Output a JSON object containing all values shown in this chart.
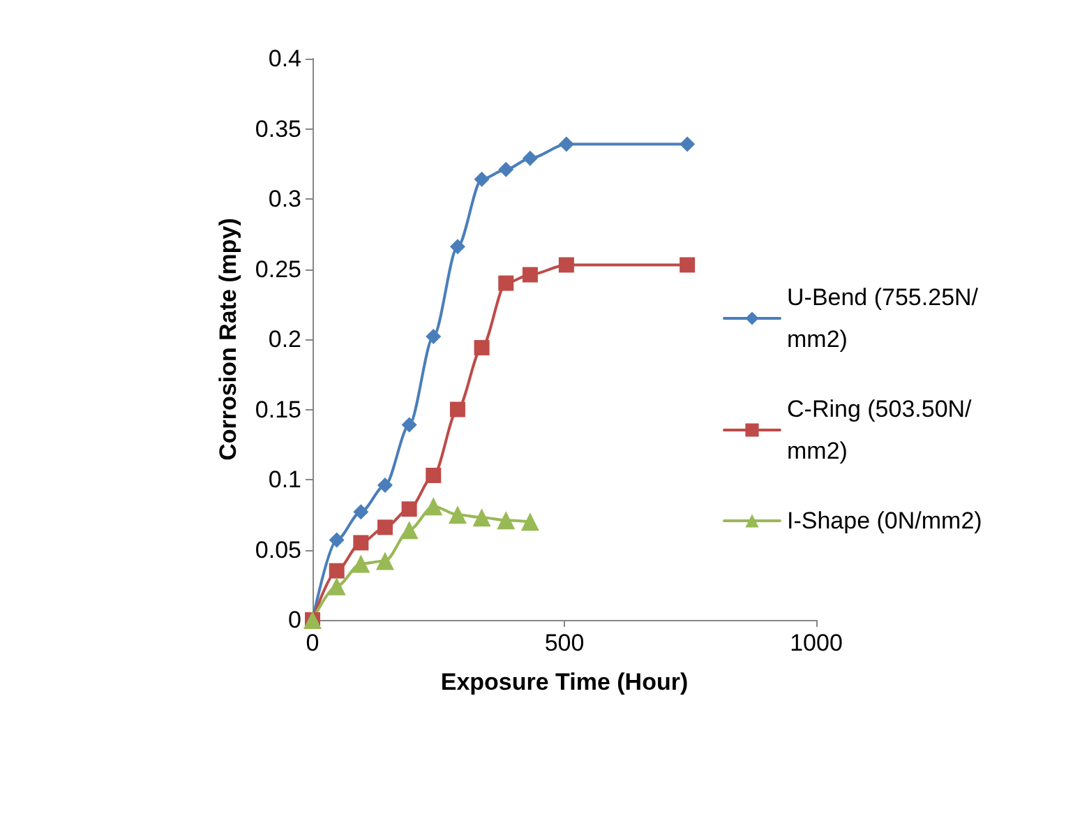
{
  "chart_data": {
    "type": "line",
    "xlabel": "Exposure Time (Hour)",
    "ylabel": "Corrosion Rate (mpy)",
    "xlim": [
      0,
      1000
    ],
    "xticks": [
      0,
      500,
      1000
    ],
    "ylim": [
      0,
      0.4
    ],
    "yticks": [
      0,
      0.05,
      0.1,
      0.15,
      0.2,
      0.25,
      0.3,
      0.35,
      0.4
    ],
    "grid": false,
    "legend": "right",
    "series": [
      {
        "name": "U-Bend (755.25N/mm2)",
        "color": "#4a7ebb",
        "marker": "diamond",
        "x": [
          0,
          48,
          96,
          144,
          192,
          240,
          288,
          336,
          384,
          432,
          504,
          744
        ],
        "values": [
          0,
          0.057,
          0.077,
          0.096,
          0.139,
          0.202,
          0.266,
          0.314,
          0.321,
          0.329,
          0.339,
          0.339
        ]
      },
      {
        "name": "C-Ring (503.50N/mm2)",
        "color": "#be4b48",
        "marker": "square",
        "x": [
          0,
          48,
          96,
          144,
          192,
          240,
          288,
          336,
          384,
          432,
          504,
          744
        ],
        "values": [
          0,
          0.035,
          0.055,
          0.066,
          0.079,
          0.103,
          0.15,
          0.194,
          0.24,
          0.246,
          0.253,
          0.253
        ]
      },
      {
        "name": "I-Shape (0N/mm2)",
        "color": "#98b954",
        "marker": "triangle",
        "x": [
          0,
          48,
          96,
          144,
          192,
          240,
          288,
          336,
          384,
          432
        ],
        "values": [
          0,
          0.024,
          0.04,
          0.042,
          0.064,
          0.081,
          0.075,
          0.073,
          0.071,
          0.07
        ]
      }
    ]
  }
}
